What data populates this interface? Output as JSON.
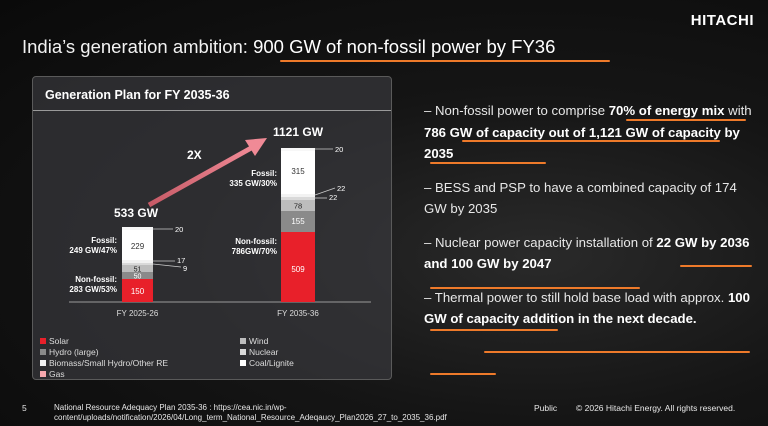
{
  "header": {
    "logo": "HITACHI",
    "title_prefix": "India’s generation ambition: ",
    "title_highlight": "900 GW of non-fossil power by FY36"
  },
  "panel": {
    "title": "Generation Plan for FY 2035-36",
    "growth_label": "2X",
    "bars": [
      {
        "year": "FY 2025-26",
        "total": "533 GW",
        "fossil_label": [
          "Fossil:",
          "249 GW/47%"
        ],
        "nonfossil_label": [
          "Non-fossil:",
          "283 GW/53%"
        ],
        "segments": {
          "solar": "150",
          "hydro": "50",
          "wind": "51",
          "nuclear": "9",
          "biomass": "17",
          "coal": "229",
          "gas": "20"
        }
      },
      {
        "year": "FY 2035-36",
        "total": "1121 GW",
        "fossil_label": [
          "Fossil:",
          "335 GW/30%"
        ],
        "nonfossil_label": [
          "Non-fossil:",
          "786GW/70%"
        ],
        "segments": {
          "solar": "509",
          "hydro": "155",
          "wind": "78",
          "nuclear": "22",
          "biomass": "22",
          "coal": "315",
          "gas": "20"
        }
      }
    ]
  },
  "legend": {
    "solar": "Solar",
    "hydro": "Hydro (large)",
    "biomass": "Biomass/Small Hydro/Other RE",
    "gas": "Gas",
    "wind": "Wind",
    "nuclear": "Nuclear",
    "coal": "Coal/Lignite"
  },
  "colors": {
    "solar": "#e8202a",
    "hydro": "#8a8a8a",
    "wind": "#bdbdbd",
    "biomass": "#f2f2f2",
    "coal": "#ffffff",
    "nuclear": "#d9d9d9",
    "gas": "#f7f7f7",
    "accent": "#ee7a2a",
    "arrow": "#e07a86"
  },
  "bullets": [
    {
      "t1": "Non-fossil power to comprise ",
      "b1": "70% of energy mix",
      "t2": " with ",
      "b2": "786 GW of capacity out of 1,121 GW of capacity by 2035",
      "t3": ""
    },
    {
      "t1": "BESS and PSP to have a combined capacity of 174 GW by 2035",
      "b1": "",
      "t2": "",
      "b2": "",
      "t3": ""
    },
    {
      "t1": "Nuclear power capacity installation of ",
      "b1": "22 GW by 2036 and 100 GW by 2047",
      "t2": "",
      "b2": "",
      "t3": ""
    },
    {
      "t1": "Thermal power to still hold base load with approx. ",
      "b1": "100 GW of capacity addition in the next decade.",
      "t2": "",
      "b2": "",
      "t3": ""
    }
  ],
  "footer": {
    "page": "5",
    "source_line1": "National Resource Adequacy Plan 2035-36 : https://cea.nic.in/wp-",
    "source_line2": "content/uploads/notification/2026/04/Long_term_National_Resource_Adeqaucy_Plan2026_27_to_2035_36.pdf",
    "classification": "Public",
    "copyright": "© 2026 Hitachi Energy. All rights reserved."
  }
}
